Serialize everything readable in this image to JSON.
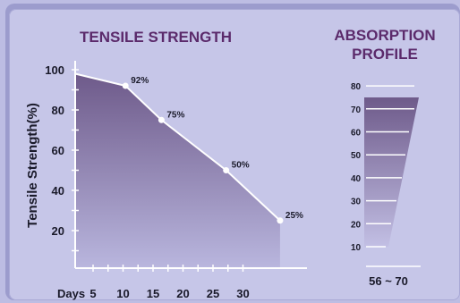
{
  "chart_data": [
    {
      "type": "area",
      "title": "TENSILE STRENGTH",
      "ylabel": "Tensile Strength(%)",
      "xlabel": "Days",
      "x_ticks": [
        "5",
        "10",
        "15",
        "20",
        "25",
        "30"
      ],
      "y_ticks": [
        "20",
        "40",
        "60",
        "80",
        "100"
      ],
      "xlim": [
        0,
        31
      ],
      "ylim": [
        0,
        102
      ],
      "series": [
        {
          "x": [
            0,
            7,
            12,
            21,
            28.5
          ],
          "y": [
            98,
            92,
            75,
            50,
            25
          ]
        }
      ],
      "annotations": [
        {
          "x": 7,
          "y": 92,
          "text": "92%"
        },
        {
          "x": 12,
          "y": 75,
          "text": "75%"
        },
        {
          "x": 21,
          "y": 50,
          "text": "50%"
        },
        {
          "x": 28.5,
          "y": 25,
          "text": "25%"
        }
      ],
      "grid": false
    },
    {
      "type": "area",
      "title": "ABSORPTION PROFILE",
      "y_ticks": [
        "10",
        "20",
        "30",
        "40",
        "50",
        "60",
        "70",
        "80"
      ],
      "ylim": [
        0,
        85
      ],
      "range_label": "56 ~ 70",
      "grid": false
    }
  ],
  "colors": {
    "background": "#bdbde3",
    "panel": "#c6c6e8",
    "title": "#5b2a6b",
    "fill_top": "#6e5a8a",
    "fill_bottom": "#b4b1da",
    "axis": "#ffffff",
    "text": "#1a1a2a"
  }
}
